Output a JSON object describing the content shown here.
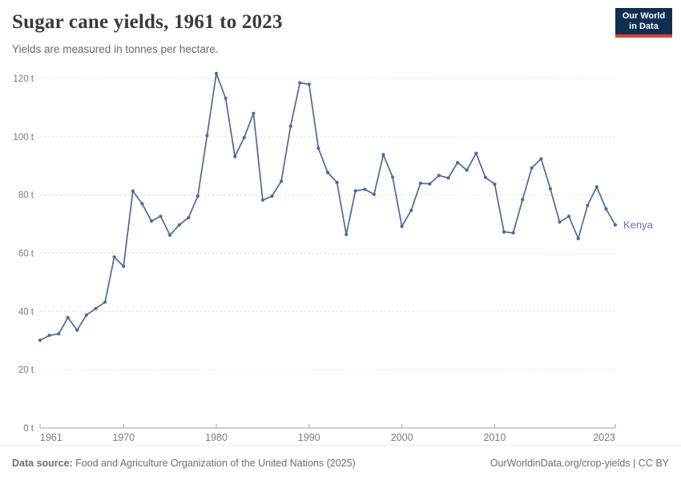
{
  "header": {
    "title": "Sugar cane yields, 1961 to 2023",
    "subtitle": "Yields are measured in tonnes per hectare.",
    "logo_line1": "Our World",
    "logo_line2": "in Data"
  },
  "footer": {
    "source_label": "Data source:",
    "source_text": " Food and Agriculture Organization of the United Nations (2025)",
    "link_text": "OurWorldinData.org/crop-yields | CC BY"
  },
  "colors": {
    "line": "#4C6A9C",
    "entity_label": "#5E79AE",
    "grid": "#dddddd",
    "axis": "#a0a0a0",
    "tick_label": "#7c7c7c",
    "logo_bg": "#0f2e52",
    "logo_red": "#d8432f"
  },
  "chart_data": {
    "type": "line",
    "title": "Sugar cane yields, 1961 to 2023",
    "xlabel": "",
    "ylabel": "tonnes per hectare",
    "x_range": [
      1961,
      2023
    ],
    "ylim": [
      0,
      120
    ],
    "x_ticks": [
      1961,
      1970,
      1980,
      1990,
      2000,
      2010,
      2023
    ],
    "y_ticks": [
      0,
      20,
      40,
      60,
      80,
      100,
      120
    ],
    "y_tick_suffix": " t",
    "grid": "horizontal-dashed",
    "legend_position": "line-end-label",
    "series": [
      {
        "name": "Kenya",
        "color": "#4C6A9C",
        "x": [
          1961,
          1962,
          1963,
          1964,
          1965,
          1966,
          1967,
          1968,
          1969,
          1970,
          1971,
          1972,
          1973,
          1974,
          1975,
          1976,
          1977,
          1978,
          1979,
          1980,
          1981,
          1982,
          1983,
          1984,
          1985,
          1986,
          1987,
          1988,
          1989,
          1990,
          1991,
          1992,
          1993,
          1994,
          1995,
          1996,
          1997,
          1998,
          1999,
          2000,
          2001,
          2002,
          2003,
          2004,
          2005,
          2006,
          2007,
          2008,
          2009,
          2010,
          2011,
          2012,
          2013,
          2014,
          2015,
          2016,
          2017,
          2018,
          2019,
          2020,
          2021,
          2022,
          2023
        ],
        "values": [
          30.1,
          31.8,
          32.3,
          37.9,
          33.6,
          38.8,
          41.0,
          43.2,
          58.7,
          55.5,
          81.3,
          77.0,
          71.0,
          72.7,
          66.2,
          69.7,
          72.2,
          79.6,
          100.4,
          121.7,
          113.2,
          93.2,
          99.7,
          108.0,
          78.2,
          79.6,
          84.7,
          103.6,
          118.5,
          118.0,
          96.0,
          87.7,
          84.3,
          66.4,
          81.4,
          81.9,
          80.2,
          93.8,
          86.1,
          69.2,
          74.7,
          84.0,
          83.8,
          86.7,
          85.8,
          91.1,
          88.5,
          94.3,
          86.0,
          83.7,
          67.3,
          67.0,
          78.4,
          89.3,
          92.4,
          82.1,
          70.7,
          72.7,
          65.0,
          76.4,
          82.8,
          75.2,
          69.7
        ]
      }
    ]
  }
}
